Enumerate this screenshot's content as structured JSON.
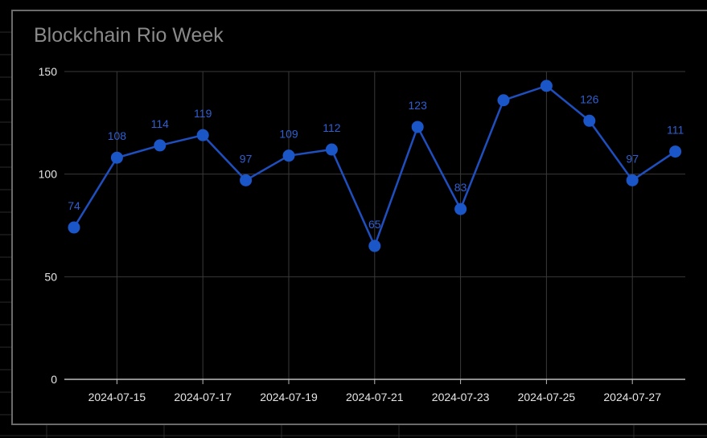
{
  "colors": {
    "background": "#000000",
    "series": "#1f4fbf",
    "point": "#1a56c8",
    "data_label": "#2f5fd0",
    "grid": "#3a3a3a",
    "axis": "#bdbdbd",
    "title": "#8a8a8a"
  },
  "chart_data": {
    "type": "line",
    "title": "Blockchain Rio Week",
    "xlabel": "",
    "ylabel": "",
    "ylim": [
      0,
      150
    ],
    "y_ticks": [
      0,
      50,
      100,
      150
    ],
    "x_tick_labels": [
      "2024-07-15",
      "2024-07-17",
      "2024-07-19",
      "2024-07-21",
      "2024-07-23",
      "2024-07-25",
      "2024-07-27"
    ],
    "grid": true,
    "legend": "none",
    "x": [
      "2024-07-14",
      "2024-07-15",
      "2024-07-16",
      "2024-07-17",
      "2024-07-18",
      "2024-07-19",
      "2024-07-20",
      "2024-07-21",
      "2024-07-22",
      "2024-07-23",
      "2024-07-24",
      "2024-07-25",
      "2024-07-26",
      "2024-07-27",
      "2024-07-28"
    ],
    "series": [
      {
        "values": [
          74,
          108,
          114,
          119,
          97,
          109,
          112,
          65,
          123,
          83,
          136,
          143,
          126,
          97,
          111
        ],
        "data_labels": [
          "74",
          "108",
          "114",
          "119",
          "97",
          "109",
          "112",
          "65",
          "123",
          "83",
          "",
          "",
          "126",
          "97",
          "111"
        ]
      }
    ]
  }
}
